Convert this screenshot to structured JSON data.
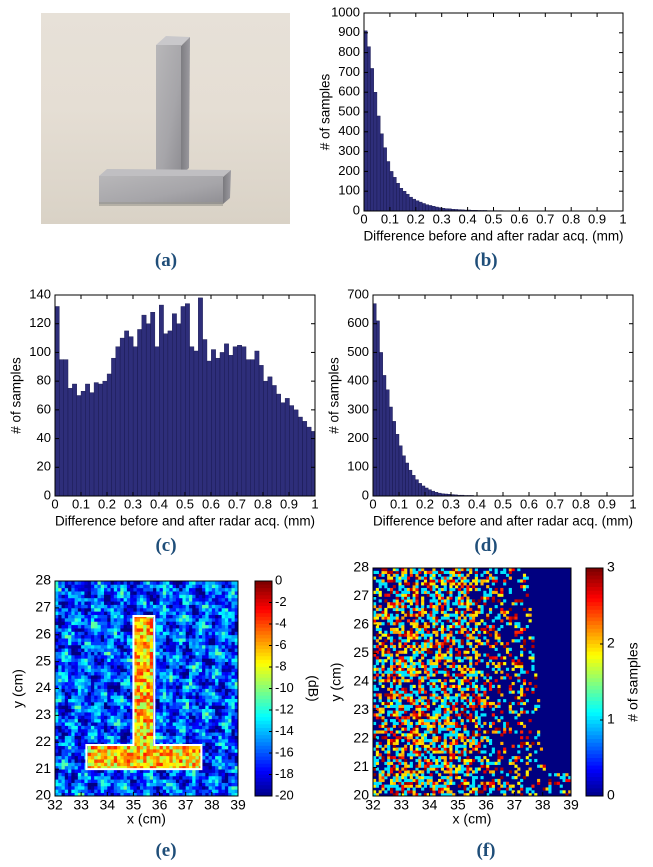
{
  "panels": {
    "a": "(a)",
    "b": "(b)",
    "c": "(c)",
    "d": "(d)",
    "e": "(e)",
    "f": "(f)"
  },
  "photo": {
    "description_icon": "aluminum-T-shape-photo-icon"
  },
  "chart_data": [
    {
      "id": "b",
      "type": "bar",
      "xlabel": "Difference before and after radar acq. (mm)",
      "ylabel": "# of samples",
      "xlim": [
        0,
        1
      ],
      "ylim": [
        0,
        1000
      ],
      "xticks": [
        "0",
        "0.1",
        "0.2",
        "0.3",
        "0.4",
        "0.5",
        "0.6",
        "0.7",
        "0.8",
        "0.9",
        "1"
      ],
      "yticks": [
        "0",
        "100",
        "200",
        "300",
        "400",
        "500",
        "600",
        "700",
        "800",
        "900",
        "1000"
      ],
      "bin_width": 0.0125,
      "values": [
        910,
        830,
        720,
        600,
        480,
        390,
        320,
        250,
        200,
        170,
        140,
        115,
        100,
        85,
        70,
        60,
        52,
        45,
        38,
        32,
        28,
        24,
        20,
        17,
        14,
        12,
        11,
        9,
        8,
        7,
        6,
        5,
        5,
        4,
        4,
        3,
        3,
        3,
        2,
        2,
        2,
        2,
        2,
        1,
        1,
        1,
        1,
        1,
        1,
        1,
        1,
        1,
        1,
        1,
        1,
        1,
        1,
        1,
        1,
        1,
        1,
        1,
        1,
        1,
        1,
        1,
        1,
        1,
        1,
        1,
        1,
        1,
        1,
        1,
        1,
        1,
        1,
        1,
        1,
        1
      ],
      "color": "#2e2e7a"
    },
    {
      "id": "c",
      "type": "bar",
      "xlabel": "Difference before and after radar acq. (mm)",
      "ylabel": "# of samples",
      "xlim": [
        0,
        1
      ],
      "ylim": [
        0,
        140
      ],
      "xticks": [
        "0",
        "0.1",
        "0.2",
        "0.3",
        "0.4",
        "0.5",
        "0.6",
        "0.7",
        "0.8",
        "0.9",
        "1"
      ],
      "yticks": [
        "0",
        "20",
        "40",
        "60",
        "80",
        "100",
        "120",
        "140"
      ],
      "bin_width": 0.0167,
      "values": [
        132,
        95,
        95,
        75,
        78,
        70,
        73,
        78,
        72,
        79,
        78,
        80,
        85,
        96,
        104,
        110,
        115,
        111,
        104,
        116,
        126,
        120,
        128,
        104,
        133,
        113,
        115,
        127,
        120,
        132,
        134,
        104,
        101,
        138,
        109,
        94,
        102,
        96,
        100,
        106,
        98,
        104,
        105,
        104,
        95,
        95,
        101,
        91,
        80,
        83,
        77,
        71,
        65,
        68,
        63,
        60,
        55,
        52,
        48,
        45,
        46,
        43,
        38,
        40,
        28,
        36,
        32,
        28,
        24,
        17
      ],
      "color": "#2e2e7a"
    },
    {
      "id": "d",
      "type": "bar",
      "xlabel": "Difference before and after radar acq. (mm)",
      "ylabel": "# of samples",
      "xlim": [
        0,
        1
      ],
      "ylim": [
        0,
        700
      ],
      "xticks": [
        "0",
        "0.1",
        "0.2",
        "0.3",
        "0.4",
        "0.5",
        "0.6",
        "0.7",
        "0.8",
        "0.9",
        "1"
      ],
      "yticks": [
        "0",
        "100",
        "200",
        "300",
        "400",
        "500",
        "600",
        "700"
      ],
      "bin_width": 0.0125,
      "values": [
        670,
        610,
        500,
        420,
        370,
        310,
        260,
        215,
        175,
        140,
        115,
        90,
        72,
        57,
        44,
        35,
        28,
        22,
        17,
        13,
        10,
        8,
        7,
        6,
        5,
        4,
        3,
        3,
        2,
        2,
        2,
        1,
        1,
        1,
        1,
        1,
        1,
        1,
        1,
        1,
        1,
        1,
        1,
        1,
        1,
        1,
        1,
        1,
        1,
        1,
        1,
        1,
        1,
        1,
        1,
        1,
        1,
        1,
        1,
        1,
        1,
        1,
        1,
        1,
        1,
        1,
        1,
        1,
        1,
        1,
        1,
        1,
        1,
        1,
        1,
        1,
        1,
        1,
        1,
        1
      ],
      "color": "#2e2e7a"
    },
    {
      "id": "e",
      "type": "heatmap",
      "xlabel": "x (cm)",
      "ylabel": "y (cm)",
      "xlim": [
        32,
        39
      ],
      "ylim": [
        20,
        28
      ],
      "xticks": [
        "32",
        "33",
        "34",
        "35",
        "36",
        "37",
        "38",
        "39"
      ],
      "yticks": [
        "20",
        "21",
        "22",
        "23",
        "24",
        "25",
        "26",
        "27",
        "28"
      ],
      "colorbar": {
        "label": "(dB)",
        "range": [
          -20,
          0
        ],
        "ticks": [
          "0",
          "-2",
          "-4",
          "-6",
          "-8",
          "-10",
          "-12",
          "-14",
          "-16",
          "-18",
          "-20"
        ]
      },
      "outline": {
        "stem_x": [
          35,
          35.8
        ],
        "stem_y": [
          21.9,
          26.7
        ],
        "bar_x": [
          33.2,
          37.6
        ],
        "bar_y": [
          21.0,
          21.9
        ]
      }
    },
    {
      "id": "f",
      "type": "heatmap",
      "xlabel": "x (cm)",
      "ylabel": "y (cm)",
      "xlim": [
        32,
        39
      ],
      "ylim": [
        20,
        28
      ],
      "xticks": [
        "32",
        "33",
        "34",
        "35",
        "36",
        "37",
        "38",
        "39"
      ],
      "yticks": [
        "20",
        "21",
        "22",
        "23",
        "24",
        "25",
        "26",
        "27",
        "28"
      ],
      "colorbar": {
        "label": "# of samples",
        "range": [
          0,
          3
        ],
        "ticks": [
          "3",
          "2",
          "1",
          "0"
        ]
      }
    }
  ]
}
